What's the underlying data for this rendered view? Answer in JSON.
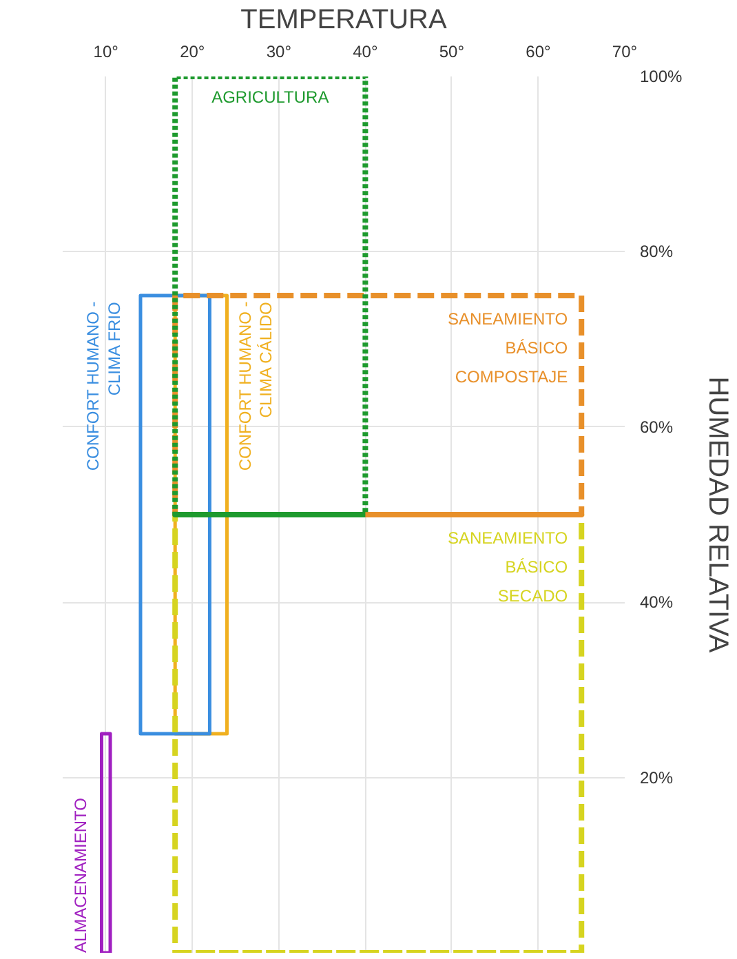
{
  "chart_data": {
    "type": "line",
    "xlabel": "TEMPERATURA",
    "ylabel": "HUMEDAD RELATIVA",
    "xlim": [
      5,
      70
    ],
    "ylim": [
      0,
      100
    ],
    "xticks": [
      {
        "value": 10,
        "label": "10°"
      },
      {
        "value": 20,
        "label": "20°"
      },
      {
        "value": 30,
        "label": "30°"
      },
      {
        "value": 40,
        "label": "40°"
      },
      {
        "value": 50,
        "label": "50°"
      },
      {
        "value": 60,
        "label": "60°"
      },
      {
        "value": 70,
        "label": "70°"
      }
    ],
    "yticks": [
      {
        "value": 20,
        "label": "20%"
      },
      {
        "value": 40,
        "label": "40%"
      },
      {
        "value": 60,
        "label": "60%"
      },
      {
        "value": 80,
        "label": "80%"
      },
      {
        "value": 100,
        "label": "100%"
      }
    ],
    "grid": true,
    "marker": "none",
    "series": [
      {
        "name": "AGRICULTURA",
        "color": "#1e9a2e",
        "line_style": "dotted",
        "x": [
          18,
          40,
          40,
          18,
          18
        ],
        "values": [
          50,
          50,
          100,
          100,
          50
        ]
      },
      {
        "name": "SANEAMIENTO\nBÁSICO\nCOMPOSTAJE",
        "color": "#e8902a",
        "line_style": "dashed",
        "x": [
          18,
          65,
          65,
          18,
          18
        ],
        "values": [
          50,
          50,
          75,
          75,
          50
        ]
      },
      {
        "name": "SANEAMIENTO\nBÁSICO\nSECADO",
        "color": "#d6d420",
        "line_style": "dashed",
        "x": [
          18,
          65,
          65,
          18,
          18
        ],
        "values": [
          0,
          0,
          50,
          50,
          0
        ]
      },
      {
        "name": "CONFORT HUMANO -\nCLIMA FRIO",
        "color": "#3a8ee0",
        "line_style": "solid",
        "x": [
          14,
          22,
          22,
          14,
          14
        ],
        "values": [
          25,
          25,
          75,
          75,
          25
        ]
      },
      {
        "name": "CONFORT HUMANO -\nCLIMA CÁLIDO",
        "color": "#f0b020",
        "line_style": "solid",
        "x": [
          18,
          24,
          24,
          18,
          18
        ],
        "values": [
          25,
          25,
          75,
          75,
          25
        ]
      },
      {
        "name": "ALMACENAMIENTO",
        "color": "#a020c0",
        "line_style": "solid",
        "x": [
          9.5,
          10.5,
          10.5,
          9.5,
          9.5
        ],
        "values": [
          0,
          0,
          25,
          25,
          0
        ]
      }
    ]
  }
}
